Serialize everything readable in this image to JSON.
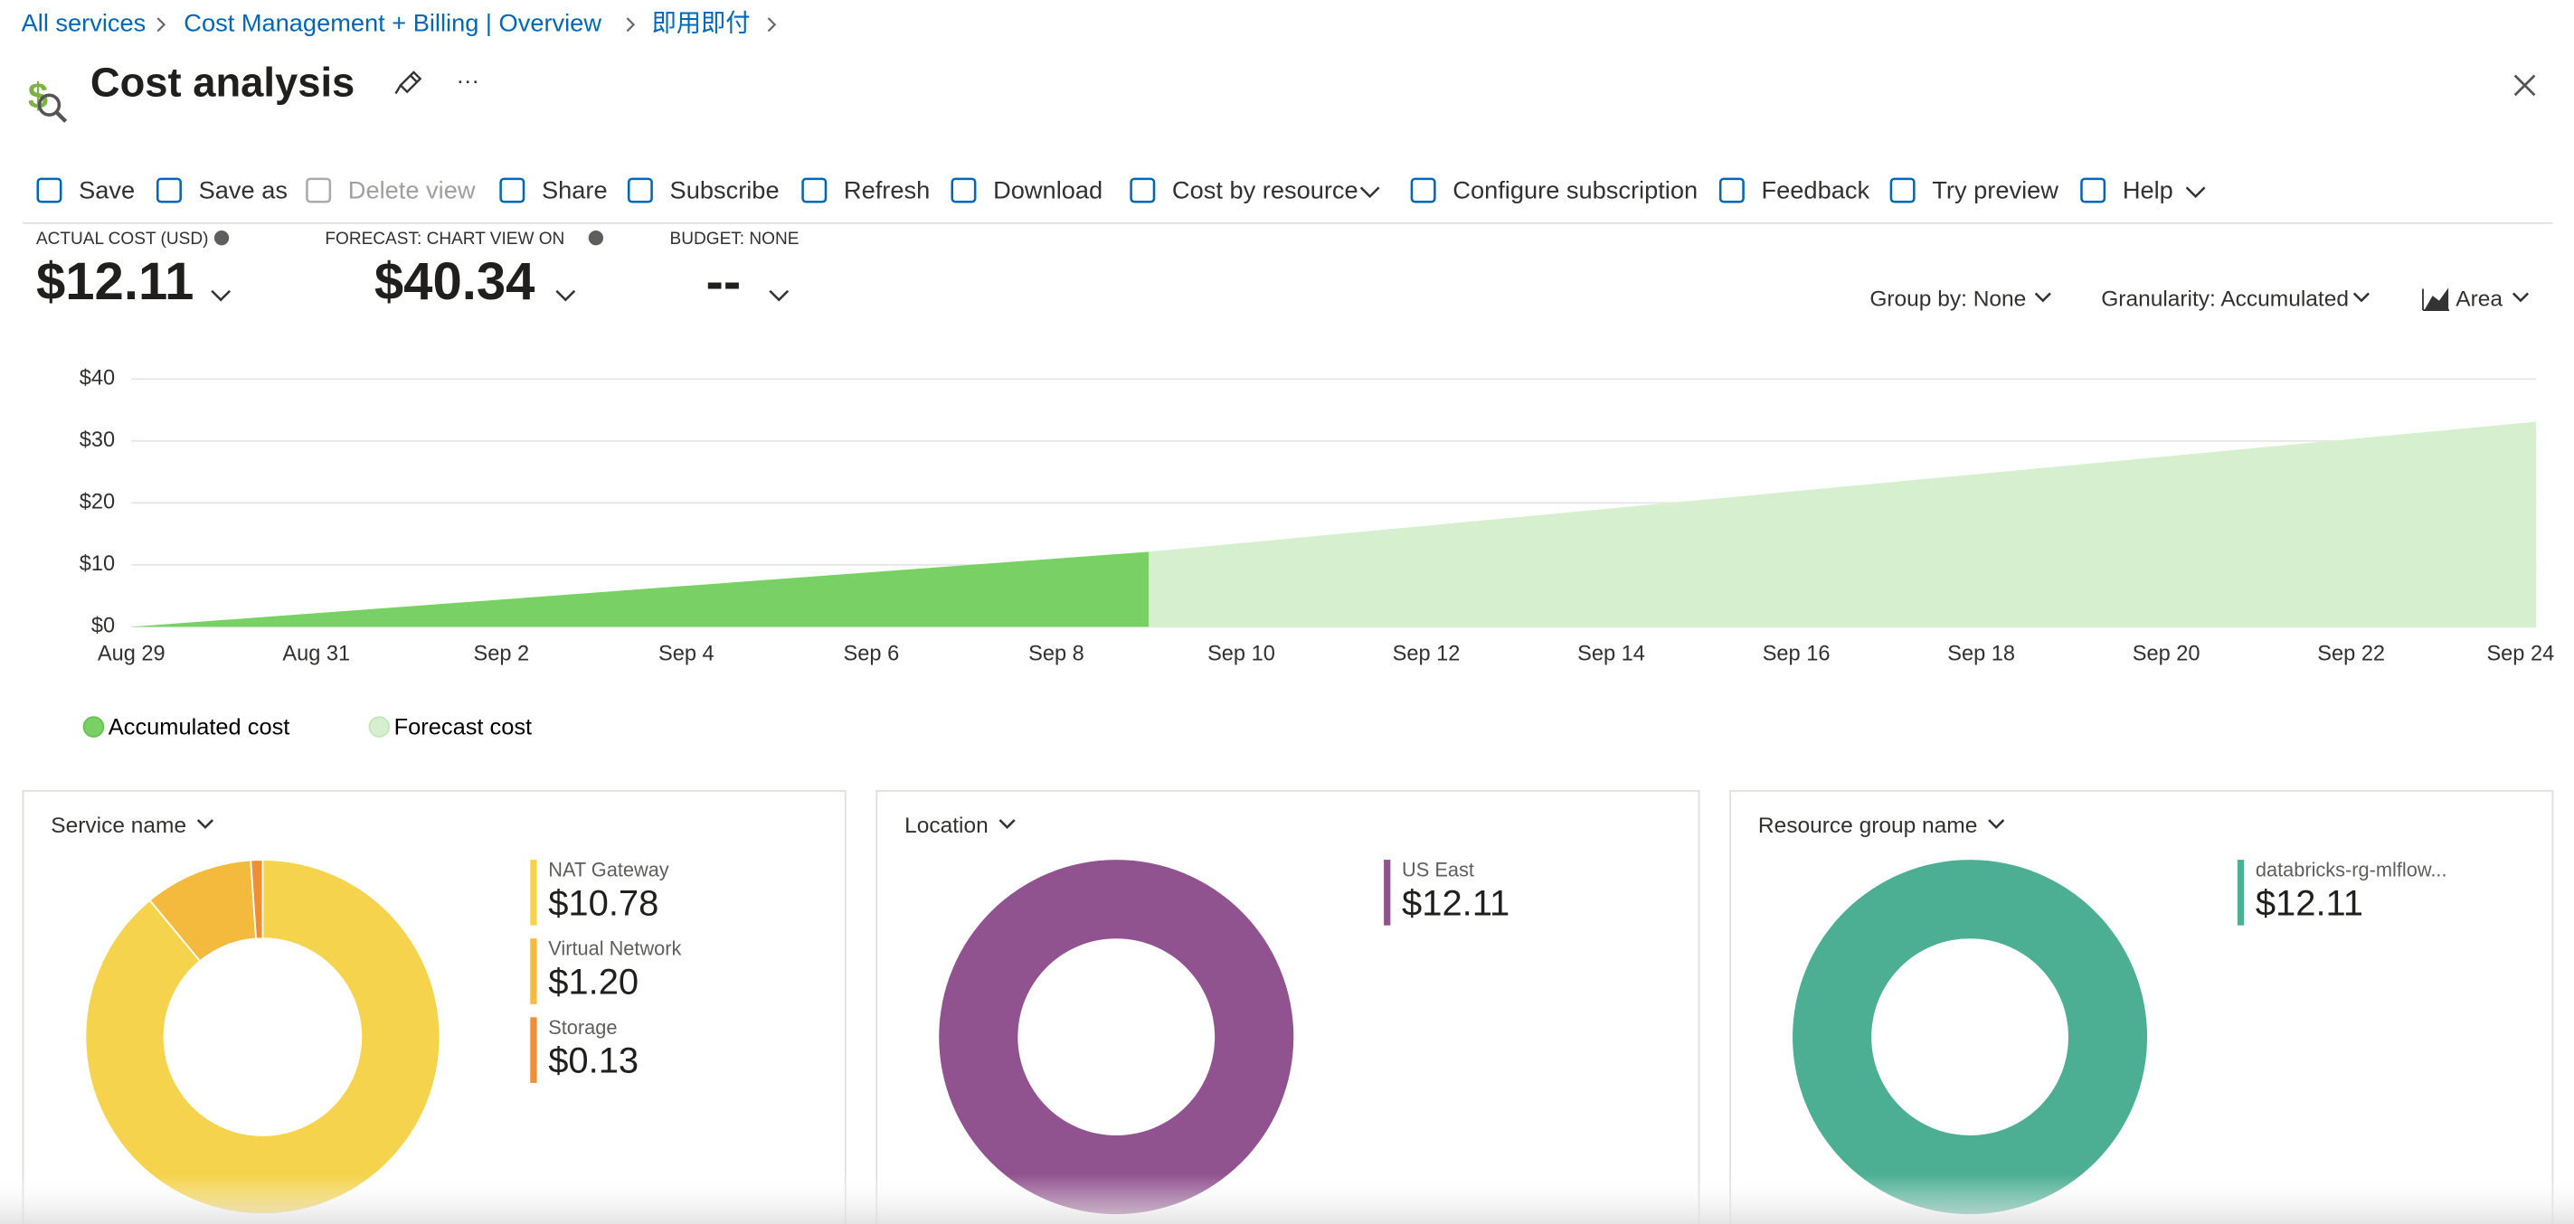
{
  "breadcrumbs": [
    "All services",
    "Cost Management + Billing | Overview",
    "即用即付"
  ],
  "header": {
    "title": "Cost analysis"
  },
  "toolbar": [
    "Save",
    "Save as",
    "Delete view",
    "Share",
    "Subscribe",
    "Refresh",
    "Download",
    "Cost by resource",
    "Configure subscription",
    "Feedback",
    "Try preview",
    "Help"
  ],
  "kpis": [
    {
      "label": "ACTUAL COST (USD)",
      "value": "$12.11"
    },
    {
      "label": "FORECAST: CHART VIEW ON",
      "value": "$40.34"
    },
    {
      "label": "BUDGET: NONE",
      "value": "--"
    }
  ],
  "controls": [
    "Group by: None",
    "Granularity: Accumulated",
    "Area"
  ],
  "chart_data": [
    {
      "type": "area",
      "categories": [
        "Aug 29",
        null,
        "Aug 31",
        null,
        "Sep 2",
        null,
        "Sep 4",
        null,
        "Sep 6",
        null,
        "Sep 8",
        null,
        "Sep 10",
        null,
        "Sep 12",
        null,
        "Sep 14",
        null,
        "Sep 16",
        null,
        "Sep 18",
        null,
        "Sep 20",
        null,
        "Sep 22",
        null,
        "Sep 24"
      ],
      "series": [
        {
          "name": "Accumulated cost",
          "color": "#79d165",
          "values": [
            0,
            1.1,
            2.2,
            3.3,
            4.4,
            5.5,
            6.61,
            7.71,
            8.81,
            9.91,
            11.01,
            12.11,
            null,
            null,
            null,
            null,
            null,
            null,
            null,
            null,
            null,
            null,
            null,
            null,
            null,
            null,
            null
          ]
        },
        {
          "name": "Forecast cost",
          "color": "#d6f0cf",
          "values": [
            null,
            null,
            null,
            null,
            null,
            null,
            null,
            null,
            null,
            null,
            null,
            12.11,
            13.51,
            14.91,
            16.31,
            17.71,
            19.11,
            20.51,
            21.91,
            23.31,
            24.71,
            26.11,
            27.51,
            28.91,
            30.31,
            31.71,
            33.11
          ]
        }
      ],
      "ylim": [
        0,
        40
      ],
      "yticks": [
        {
          "value": 0,
          "label": "$0"
        },
        {
          "value": 10,
          "label": "$10"
        },
        {
          "value": 20,
          "label": "$20"
        },
        {
          "value": 30,
          "label": "$30"
        },
        {
          "value": 40,
          "label": "$40"
        }
      ],
      "grid": true
    },
    {
      "type": "donut",
      "title": "Service name",
      "categories": [
        "NAT Gateway",
        "Virtual Network",
        "Storage"
      ],
      "values": [
        10.78,
        1.2,
        0.13
      ],
      "value_labels": [
        "$10.78",
        "$1.20",
        "$0.13"
      ],
      "colors": [
        "#f5d34c",
        "#f3ba3d",
        "#ee8f33"
      ]
    },
    {
      "type": "donut",
      "title": "Location",
      "categories": [
        "US East"
      ],
      "values": [
        12.11
      ],
      "value_labels": [
        "$12.11"
      ],
      "colors": [
        "#91538f"
      ]
    },
    {
      "type": "donut",
      "title": "Resource group name",
      "categories": [
        "databricks-rg-mlflow..."
      ],
      "values": [
        12.11
      ],
      "value_labels": [
        "$12.11"
      ],
      "colors": [
        "#4caf93"
      ]
    }
  ]
}
